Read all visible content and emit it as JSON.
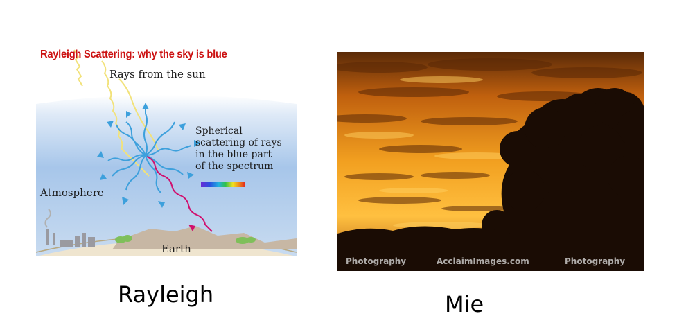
{
  "left_panel": {
    "title": "Rayleigh Scattering:  why the sky is blue",
    "rays_label": "Rays from the sun",
    "spherical_lines": [
      "Spherical",
      "scattering of rays",
      "in the blue part",
      "of the spectrum"
    ],
    "atmosphere_label": "Atmosphere",
    "earth_label": "Earth",
    "caption": "Rayleigh"
  },
  "right_panel": {
    "watermarks": [
      "Photography",
      "AcclaimImages.com",
      "Photography"
    ],
    "caption": "Mie"
  },
  "colors": {
    "title_red": "#cc1111",
    "sky_blue": "#a9c8ea",
    "ray_yellow": "#f2e27a",
    "scatter_blue": "#3da0dc",
    "magenta_ray": "#d0106e",
    "sunset_orange": "#e8901a"
  }
}
